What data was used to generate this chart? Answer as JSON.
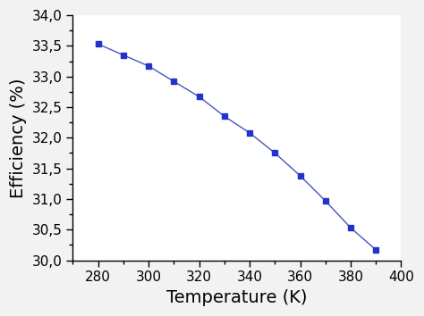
{
  "x": [
    280,
    290,
    300,
    310,
    320,
    330,
    340,
    350,
    360,
    370,
    380,
    390
  ],
  "y": [
    33.53,
    33.35,
    33.17,
    32.92,
    32.67,
    32.35,
    32.08,
    31.75,
    31.38,
    30.97,
    30.53,
    30.17
  ],
  "xlabel": "Temperature (K)",
  "ylabel": "Efficiency (%)",
  "xlim": [
    270,
    400
  ],
  "ylim": [
    30.0,
    34.0
  ],
  "xticks": [
    280,
    300,
    320,
    340,
    360,
    380,
    400
  ],
  "yticks": [
    30.0,
    30.5,
    31.0,
    31.5,
    32.0,
    32.5,
    33.0,
    33.5,
    34.0
  ],
  "line_color": "#4455bb",
  "marker_color": "#2233cc",
  "marker": "s",
  "marker_size": 5,
  "line_width": 1.0,
  "fig_bg_color": "#f2f2f2",
  "plot_bg_color": "#ffffff",
  "xlabel_fontsize": 14,
  "ylabel_fontsize": 14,
  "tick_labelsize": 11
}
